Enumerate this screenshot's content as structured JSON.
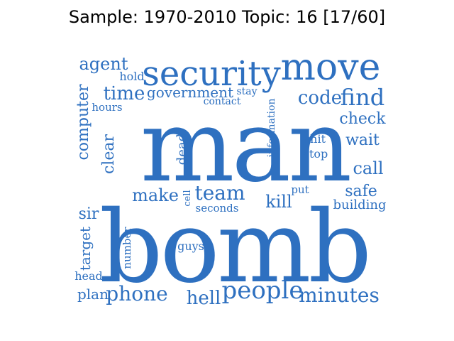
{
  "title": "Sample: 1970-2010 Topic: 16 [17/60]",
  "word_color": "#2e70c0",
  "words": [
    {
      "text": "man"
    },
    {
      "text": "bomb"
    },
    {
      "text": "security"
    },
    {
      "text": "move"
    },
    {
      "text": "people"
    },
    {
      "text": "minutes"
    },
    {
      "text": "phone"
    },
    {
      "text": "find"
    },
    {
      "text": "team"
    },
    {
      "text": "time"
    },
    {
      "text": "code"
    },
    {
      "text": "agent"
    },
    {
      "text": "government"
    },
    {
      "text": "computer"
    },
    {
      "text": "clear"
    },
    {
      "text": "make"
    },
    {
      "text": "kill"
    },
    {
      "text": "check"
    },
    {
      "text": "wait"
    },
    {
      "text": "call"
    },
    {
      "text": "safe"
    },
    {
      "text": "building"
    },
    {
      "text": "hell"
    },
    {
      "text": "sir"
    },
    {
      "text": "target"
    },
    {
      "text": "plan"
    },
    {
      "text": "head"
    },
    {
      "text": "number"
    },
    {
      "text": "guys"
    },
    {
      "text": "dead"
    },
    {
      "text": "cell"
    },
    {
      "text": "seconds"
    },
    {
      "text": "put"
    },
    {
      "text": "shit"
    },
    {
      "text": "stop"
    },
    {
      "text": "information"
    },
    {
      "text": "hold"
    },
    {
      "text": "stay"
    },
    {
      "text": "contact"
    },
    {
      "text": "hours"
    }
  ]
}
